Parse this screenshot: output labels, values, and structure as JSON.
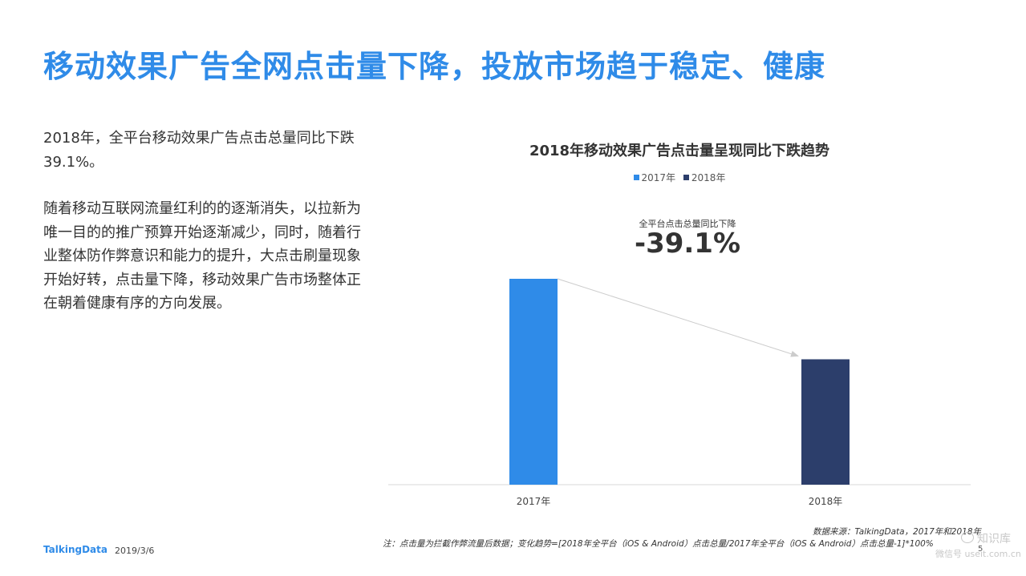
{
  "page": {
    "title": "移动效果广告全网点击量下降，投放市场趋于稳定、健康",
    "paragraphs": [
      "2018年，全平台移动效果广告点击总量同比下跌39.1%。",
      "随着移动互联网流量红利的的逐渐消失，以拉新为唯一目的的推广预算开始逐渐减少，同时，随着行业整体防作弊意识和能力的提升，大点击刷量现象开始好转，点击量下降，移动效果广告市场整体正在朝着健康有序的方向发展。"
    ],
    "source": "数据来源：TalkingData，2017年和2018年",
    "note": "注：点击量为拦截作弊流量后数据；变化趋势=[2018年全平台（iOS & Android）点击总量/2017年全平台（iOS & Android）点击总量-1]*100%",
    "page_number": "5",
    "logo": "TalkingData",
    "date": "2019/3/6",
    "watermark": {
      "line1": "知识库",
      "line2": "微信号 useit.com.cn"
    }
  },
  "chart_data": {
    "type": "bar",
    "title": "2018年移动效果广告点击量呈现同比下跌趋势",
    "categories": [
      "2017年",
      "2018年"
    ],
    "values": [
      100,
      60.9
    ],
    "colors": [
      "#2f8be8",
      "#2c3e6b"
    ],
    "legend": [
      "2017年",
      "2018年"
    ],
    "legend_position": "top",
    "ylim": [
      0,
      100
    ],
    "annotation": {
      "label": "全平台点击总量同比下降",
      "value": "-39.1%"
    },
    "grid": false
  }
}
